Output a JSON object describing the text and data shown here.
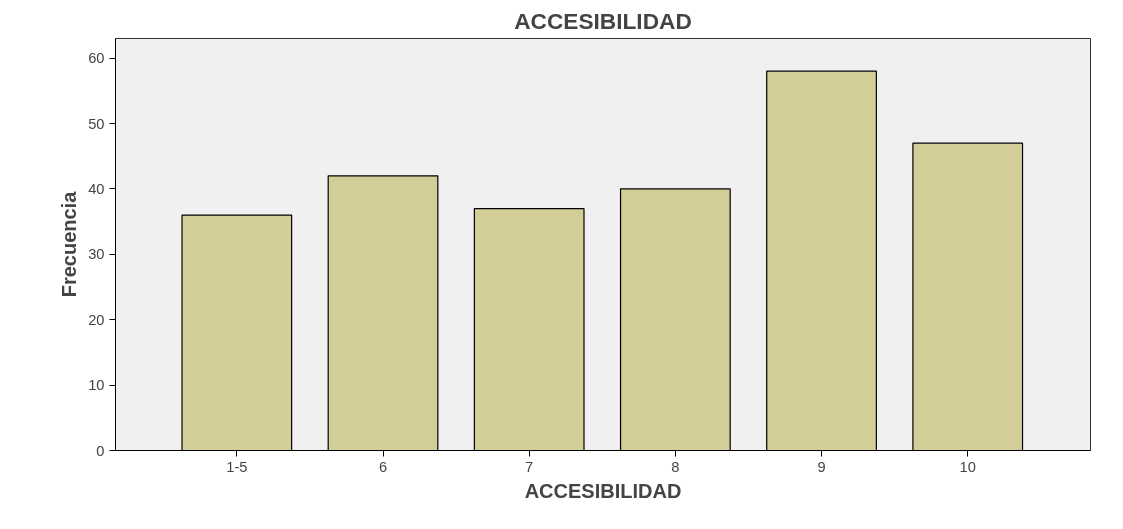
{
  "chart_data": {
    "type": "bar",
    "title": "ACCESIBILIDAD",
    "xlabel": "ACCESIBILIDAD",
    "ylabel": "Frecuencia",
    "categories": [
      "1-5",
      "6",
      "7",
      "8",
      "9",
      "10"
    ],
    "values": [
      36,
      42,
      37,
      40,
      58,
      47
    ],
    "color": "#d3ce98",
    "ylim": [
      0,
      63
    ],
    "yticks": [
      0,
      10,
      20,
      30,
      40,
      50,
      60
    ],
    "grid": false
  }
}
